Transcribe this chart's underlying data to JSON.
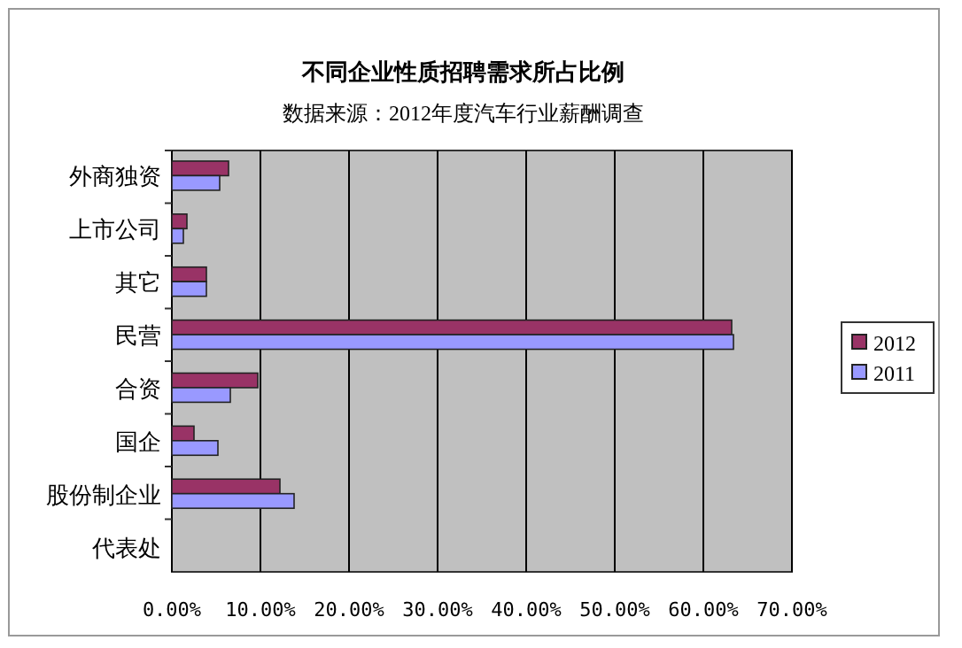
{
  "chart_data": {
    "type": "bar",
    "orientation": "horizontal",
    "title": "不同企业性质招聘需求所占比例",
    "subtitle": "数据来源：2012年度汽车行业薪酬调查",
    "categories": [
      "外商独资",
      "上市公司",
      "其它",
      "民营",
      "合资",
      "国企",
      "股份制企业",
      "代表处"
    ],
    "series": [
      {
        "name": "2012",
        "color": "#993366",
        "values": [
          6.4,
          1.7,
          3.9,
          63.2,
          9.7,
          2.5,
          12.2,
          0
        ]
      },
      {
        "name": "2011",
        "color": "#9999ff",
        "values": [
          5.4,
          1.3,
          3.9,
          63.4,
          6.6,
          5.2,
          13.8,
          0
        ]
      }
    ],
    "xlim": [
      0,
      70
    ],
    "xticks": [
      {
        "value": 0,
        "label": "0.00%"
      },
      {
        "value": 10,
        "label": "10.00%"
      },
      {
        "value": 20,
        "label": "20.00%"
      },
      {
        "value": 30,
        "label": "30.00%"
      },
      {
        "value": 40,
        "label": "40.00%"
      },
      {
        "value": 50,
        "label": "50.00%"
      },
      {
        "value": 60,
        "label": "60.00%"
      },
      {
        "value": 70,
        "label": "70.00%"
      }
    ],
    "grid": "x",
    "legend": "right"
  }
}
